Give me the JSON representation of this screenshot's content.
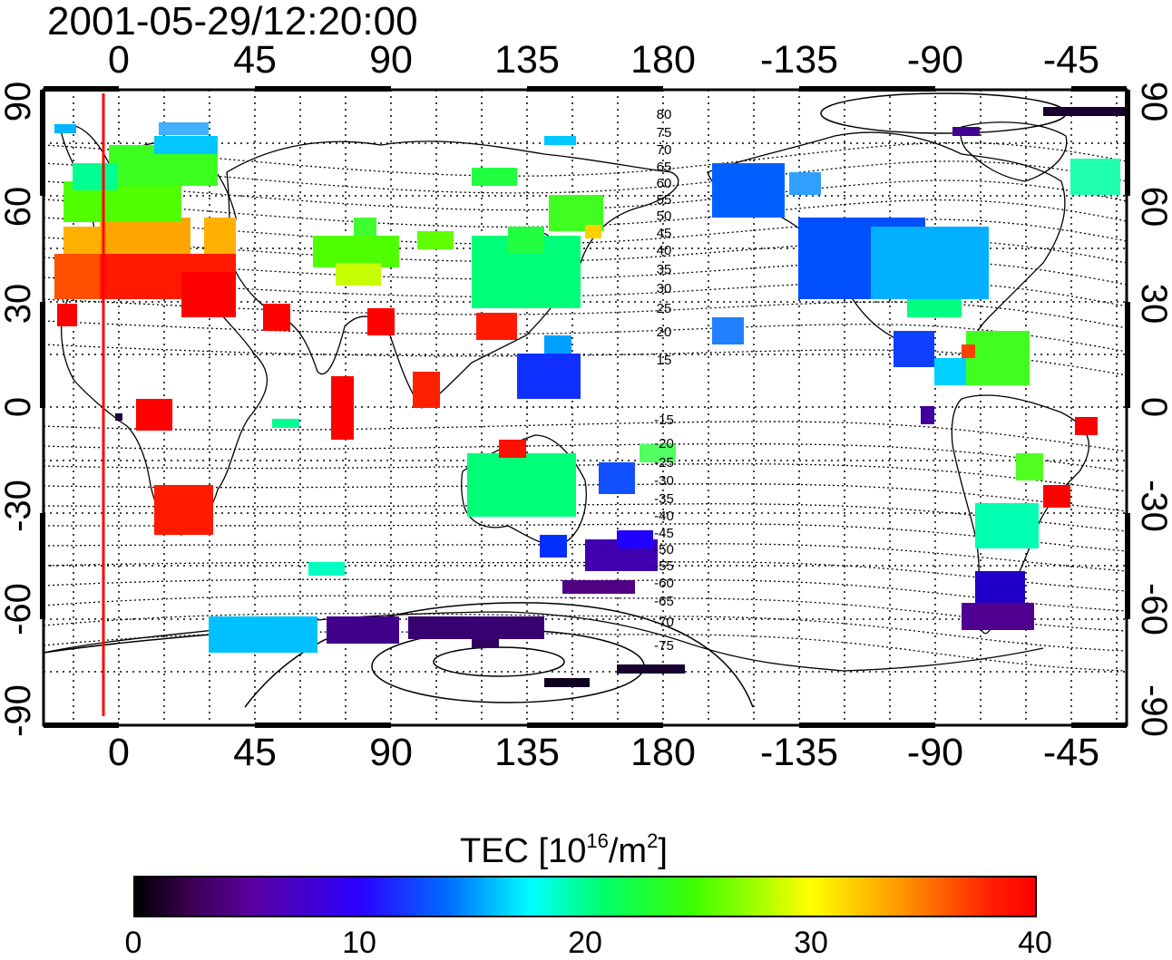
{
  "title": "2001-05-29/12:20:00",
  "lon_ticks": [
    "0",
    "45",
    "90",
    "135",
    "180",
    "-135",
    "-90",
    "-45"
  ],
  "lat_ticks": [
    "90",
    "60",
    "30",
    "0",
    "-30",
    "-60",
    "-90"
  ],
  "contour_labels_north": [
    "80",
    "75",
    "70",
    "65",
    "60",
    "55",
    "50",
    "45",
    "40",
    "35",
    "30",
    "25",
    "20",
    "15"
  ],
  "contour_labels_south": [
    "-15",
    "-20",
    "-25",
    "-30",
    "-35",
    "-40",
    "-45",
    "-50",
    "-55",
    "-60",
    "-65",
    "-70",
    "-75"
  ],
  "colorbar": {
    "label": "TEC  [10",
    "label_sup1": "16",
    "label_mid": "/m",
    "label_sup2": "2",
    "label_end": "]",
    "ticks": [
      "0",
      "10",
      "20",
      "30",
      "40"
    ],
    "min": 0,
    "max": 40
  },
  "colors": {
    "marker_line": "#ff0000"
  }
}
